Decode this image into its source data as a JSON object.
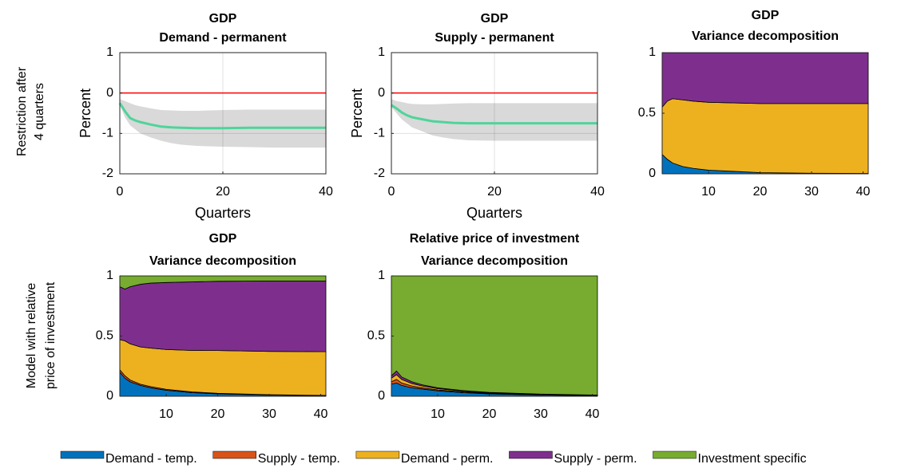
{
  "row_labels": [
    [
      "Restriction after",
      "4 quarters"
    ],
    [
      "Model with relative",
      "price of investment"
    ]
  ],
  "chart_data": [
    {
      "type": "line",
      "title": "GDP",
      "subtitle": "Demand - permanent",
      "xlabel": "Quarters",
      "ylabel": "Percent",
      "x": [
        0,
        1,
        2,
        3,
        4,
        6,
        8,
        10,
        12,
        15,
        20,
        25,
        30,
        35,
        40
      ],
      "series": [
        {
          "color": "#4fd49a",
          "values": [
            -0.25,
            -0.45,
            -0.62,
            -0.68,
            -0.72,
            -0.78,
            -0.83,
            -0.85,
            -0.86,
            -0.87,
            -0.87,
            -0.86,
            -0.86,
            -0.86,
            -0.86
          ]
        }
      ],
      "band": {
        "color": "#d9d9d9",
        "lower": [
          -0.3,
          -0.6,
          -0.8,
          -0.9,
          -1.0,
          -1.1,
          -1.18,
          -1.24,
          -1.28,
          -1.31,
          -1.33,
          -1.34,
          -1.35,
          -1.35,
          -1.35
        ],
        "upper": [
          -0.15,
          -0.2,
          -0.25,
          -0.3,
          -0.33,
          -0.38,
          -0.42,
          -0.43,
          -0.44,
          -0.44,
          -0.42,
          -0.41,
          -0.41,
          -0.41,
          -0.41
        ]
      },
      "hline": {
        "value": 0,
        "color": "#ff0000"
      },
      "xlim": [
        0,
        40
      ],
      "xticks": [
        0,
        20,
        40
      ],
      "ylim": [
        -2,
        1
      ],
      "yticks": [
        -2,
        -1,
        0,
        1
      ],
      "grid": true
    },
    {
      "type": "line",
      "title": "GDP",
      "subtitle": "Supply - permanent",
      "xlabel": "Quarters",
      "ylabel": "Percent",
      "x": [
        0,
        1,
        2,
        3,
        4,
        6,
        8,
        10,
        12,
        15,
        20,
        25,
        30,
        35,
        40
      ],
      "series": [
        {
          "color": "#4fd49a",
          "values": [
            -0.3,
            -0.38,
            -0.48,
            -0.55,
            -0.6,
            -0.65,
            -0.7,
            -0.72,
            -0.74,
            -0.75,
            -0.75,
            -0.75,
            -0.75,
            -0.75,
            -0.75
          ]
        }
      ],
      "band": {
        "color": "#d9d9d9",
        "lower": [
          -0.35,
          -0.5,
          -0.65,
          -0.75,
          -0.85,
          -0.95,
          -1.05,
          -1.1,
          -1.14,
          -1.17,
          -1.18,
          -1.18,
          -1.18,
          -1.18,
          -1.18
        ],
        "upper": [
          -0.15,
          -0.2,
          -0.22,
          -0.25,
          -0.27,
          -0.28,
          -0.28,
          -0.27,
          -0.26,
          -0.25,
          -0.25,
          -0.25,
          -0.25,
          -0.25,
          -0.25
        ]
      },
      "hline": {
        "value": 0,
        "color": "#ff0000"
      },
      "xlim": [
        0,
        40
      ],
      "xticks": [
        0,
        20,
        40
      ],
      "ylim": [
        -2,
        1
      ],
      "yticks": [
        -2,
        -1,
        0,
        1
      ],
      "grid": true
    },
    {
      "type": "area",
      "title": "GDP",
      "subtitle": "Variance decomposition",
      "x": [
        1,
        2,
        3,
        5,
        7,
        10,
        15,
        20,
        30,
        41
      ],
      "series": [
        {
          "name": "Demand - temp.",
          "color": "#0072bd",
          "values": [
            0.16,
            0.12,
            0.09,
            0.06,
            0.045,
            0.03,
            0.02,
            0.01,
            0.005,
            0.003
          ]
        },
        {
          "name": "Demand - perm.",
          "color": "#edb120",
          "values": [
            0.39,
            0.48,
            0.53,
            0.55,
            0.555,
            0.56,
            0.565,
            0.57,
            0.575,
            0.577
          ]
        },
        {
          "name": "Supply - perm.",
          "color": "#7e2f8e",
          "values": [
            0.45,
            0.4,
            0.38,
            0.39,
            0.4,
            0.41,
            0.415,
            0.42,
            0.42,
            0.42
          ]
        }
      ],
      "xlim": [
        1,
        41
      ],
      "xticks": [
        10,
        20,
        30,
        40
      ],
      "ylim": [
        0,
        1
      ],
      "yticks": [
        0,
        0.5,
        1
      ],
      "grid": false
    },
    {
      "type": "area",
      "title": "GDP",
      "subtitle": "Variance decomposition",
      "x": [
        1,
        2,
        3,
        5,
        7,
        10,
        15,
        20,
        30,
        41
      ],
      "series": [
        {
          "name": "Demand - temp.",
          "color": "#0072bd",
          "values": [
            0.2,
            0.15,
            0.12,
            0.09,
            0.07,
            0.05,
            0.03,
            0.02,
            0.01,
            0.005
          ]
        },
        {
          "name": "Supply - temp.",
          "color": "#d95319",
          "values": [
            0.02,
            0.02,
            0.015,
            0.01,
            0.01,
            0.008,
            0.006,
            0.005,
            0.003,
            0.002
          ]
        },
        {
          "name": "Demand - perm.",
          "color": "#edb120",
          "values": [
            0.25,
            0.29,
            0.3,
            0.31,
            0.32,
            0.33,
            0.345,
            0.355,
            0.36,
            0.363
          ]
        },
        {
          "name": "Supply - perm.",
          "color": "#7e2f8e",
          "values": [
            0.44,
            0.43,
            0.475,
            0.52,
            0.54,
            0.557,
            0.569,
            0.575,
            0.585,
            0.588
          ]
        },
        {
          "name": "Investment specific",
          "color": "#77ac30",
          "values": [
            0.09,
            0.11,
            0.09,
            0.07,
            0.06,
            0.055,
            0.05,
            0.045,
            0.042,
            0.042
          ]
        }
      ],
      "xlim": [
        1,
        41
      ],
      "xticks": [
        10,
        20,
        30,
        40
      ],
      "ylim": [
        0,
        1
      ],
      "yticks": [
        0,
        0.5,
        1
      ],
      "grid": false
    },
    {
      "type": "area",
      "title": "Relative price of investment",
      "subtitle": "Variance decomposition",
      "x": [
        1,
        2,
        3,
        5,
        7,
        10,
        15,
        20,
        30,
        41
      ],
      "series": [
        {
          "name": "Demand - temp.",
          "color": "#0072bd",
          "values": [
            0.1,
            0.11,
            0.09,
            0.07,
            0.06,
            0.045,
            0.03,
            0.02,
            0.01,
            0.005
          ]
        },
        {
          "name": "Supply - temp.",
          "color": "#d95319",
          "values": [
            0.02,
            0.03,
            0.02,
            0.015,
            0.01,
            0.008,
            0.006,
            0.004,
            0.003,
            0.002
          ]
        },
        {
          "name": "Demand - perm.",
          "color": "#edb120",
          "values": [
            0.03,
            0.04,
            0.03,
            0.02,
            0.015,
            0.01,
            0.007,
            0.005,
            0.003,
            0.002
          ]
        },
        {
          "name": "Supply - perm.",
          "color": "#7e2f8e",
          "values": [
            0.02,
            0.03,
            0.02,
            0.015,
            0.01,
            0.007,
            0.004,
            0.003,
            0.002,
            0.001
          ]
        },
        {
          "name": "Investment specific",
          "color": "#77ac30",
          "values": [
            0.83,
            0.79,
            0.84,
            0.88,
            0.905,
            0.93,
            0.953,
            0.968,
            0.982,
            0.99
          ]
        }
      ],
      "xlim": [
        1,
        41
      ],
      "xticks": [
        10,
        20,
        30,
        40
      ],
      "ylim": [
        0,
        1
      ],
      "yticks": [
        0,
        0.5,
        1
      ],
      "grid": false
    }
  ]
}
